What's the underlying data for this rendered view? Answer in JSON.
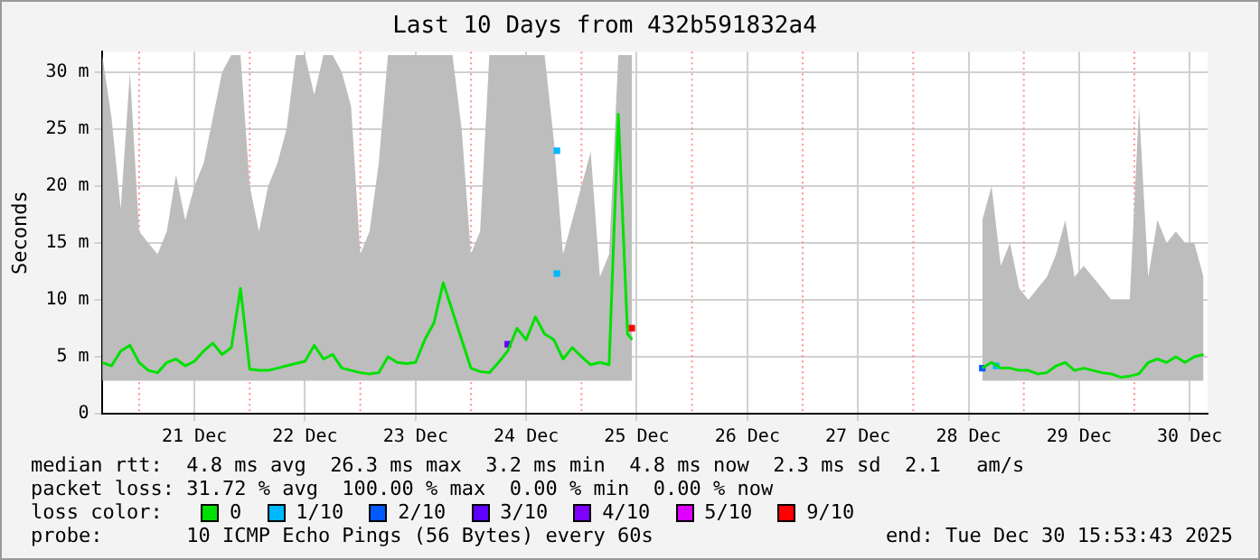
{
  "chart_data": {
    "type": "line",
    "title": "Last 10 Days from 432b591832a4",
    "ylabel": "Seconds",
    "legend_title": "loss color:",
    "x": [
      "2025-12-20T16:00",
      "2025-12-20T18:00",
      "2025-12-20T20:00",
      "2025-12-20T22:00",
      "2025-12-21T00:00",
      "2025-12-21T02:00",
      "2025-12-21T04:00",
      "2025-12-21T06:00",
      "2025-12-21T08:00",
      "2025-12-21T10:00",
      "2025-12-21T12:00",
      "2025-12-21T14:00",
      "2025-12-21T16:00",
      "2025-12-21T18:00",
      "2025-12-21T20:00",
      "2025-12-21T22:00",
      "2025-12-22T00:00",
      "2025-12-22T02:00",
      "2025-12-22T04:00",
      "2025-12-22T06:00",
      "2025-12-22T08:00",
      "2025-12-22T10:00",
      "2025-12-22T12:00",
      "2025-12-22T14:00",
      "2025-12-22T16:00",
      "2025-12-22T18:00",
      "2025-12-22T20:00",
      "2025-12-22T22:00",
      "2025-12-23T00:00",
      "2025-12-23T02:00",
      "2025-12-23T04:00",
      "2025-12-23T06:00",
      "2025-12-23T08:00",
      "2025-12-23T10:00",
      "2025-12-23T12:00",
      "2025-12-23T14:00",
      "2025-12-23T16:00",
      "2025-12-23T18:00",
      "2025-12-23T20:00",
      "2025-12-23T22:00",
      "2025-12-24T00:00",
      "2025-12-24T02:00",
      "2025-12-24T04:00",
      "2025-12-24T06:00",
      "2025-12-24T08:00",
      "2025-12-24T10:00",
      "2025-12-24T12:00",
      "2025-12-24T14:00",
      "2025-12-24T16:00",
      "2025-12-24T18:00",
      "2025-12-24T20:00",
      "2025-12-24T22:00",
      "2025-12-25T00:00",
      "2025-12-25T02:00",
      "2025-12-25T04:00",
      "2025-12-25T06:00",
      "2025-12-25T08:00",
      "2025-12-25T10:00",
      "2025-12-25T11:00",
      "2025-12-26T12:00",
      "2025-12-28T15:00",
      "2025-12-28T17:00",
      "2025-12-28T19:00",
      "2025-12-28T21:00",
      "2025-12-28T23:00",
      "2025-12-29T01:00",
      "2025-12-29T03:00",
      "2025-12-29T05:00",
      "2025-12-29T07:00",
      "2025-12-29T09:00",
      "2025-12-29T11:00",
      "2025-12-29T13:00",
      "2025-12-29T15:00",
      "2025-12-29T17:00",
      "2025-12-29T19:00",
      "2025-12-29T21:00",
      "2025-12-29T23:00",
      "2025-12-30T01:00",
      "2025-12-30T03:00",
      "2025-12-30T05:00",
      "2025-12-30T07:00",
      "2025-12-30T09:00",
      "2025-12-30T11:00",
      "2025-12-30T13:00",
      "2025-12-30T15:00"
    ],
    "series": [
      {
        "name": "0",
        "color": "#00e000",
        "values": [
          4.5,
          4.2,
          5.5,
          6,
          4.5,
          3.8,
          3.6,
          4.5,
          4.8,
          4.2,
          4.6,
          5.5,
          6.2,
          5.2,
          5.8,
          11,
          3.9,
          3.8,
          3.8,
          4,
          4.2,
          4.4,
          4.6,
          6,
          4.8,
          5.2,
          4,
          3.8,
          3.6,
          3.5,
          3.6,
          5,
          4.5,
          4.4,
          4.5,
          6.5,
          8,
          11.5,
          9,
          6.5,
          4,
          3.7,
          3.6,
          4.5,
          5.5,
          7.5,
          6.5,
          8.5,
          7,
          6.5,
          4.8,
          5.8,
          5,
          4.3,
          4.5,
          4.3,
          26.3,
          7,
          6.5,
          null,
          4,
          4.5,
          4,
          4,
          3.8,
          3.8,
          3.5,
          3.6,
          4.2,
          4.5,
          3.8,
          4,
          3.8,
          3.6,
          3.5,
          3.2,
          3.3,
          3.5,
          4.5,
          4.8,
          4.5,
          5,
          4.5,
          5,
          5.2
        ],
        "lower": [
          2.9,
          2.9,
          2.9,
          2.9,
          2.9,
          2.9,
          2.9,
          2.9,
          2.9,
          2.9,
          2.9,
          2.9,
          2.9,
          2.9,
          2.9,
          2.9,
          2.9,
          2.9,
          2.9,
          2.9,
          2.9,
          2.9,
          2.9,
          2.9,
          2.9,
          2.9,
          2.9,
          2.9,
          2.9,
          2.9,
          2.9,
          2.9,
          2.9,
          2.9,
          2.9,
          2.9,
          2.9,
          2.9,
          2.9,
          2.9,
          2.9,
          2.9,
          2.9,
          2.9,
          2.9,
          2.9,
          2.9,
          2.9,
          2.9,
          2.9,
          2.9,
          2.9,
          2.9,
          2.9,
          2.9,
          2.9,
          2.9,
          2.9,
          2.9,
          null,
          2.9,
          2.9,
          2.9,
          2.9,
          2.9,
          2.9,
          2.9,
          2.9,
          2.9,
          2.9,
          2.9,
          2.9,
          2.9,
          2.9,
          2.9,
          2.9,
          2.9,
          2.9,
          2.9,
          2.9,
          2.9,
          2.9,
          2.9,
          2.9,
          2.9
        ],
        "upper": [
          31.5,
          26,
          18,
          30,
          16,
          15,
          14,
          16,
          21,
          17,
          20,
          22,
          26,
          30,
          31.5,
          31.5,
          20,
          16,
          20,
          22,
          25,
          31.5,
          31.5,
          28,
          31.5,
          31.5,
          30,
          27,
          14,
          16,
          22,
          31.5,
          31.5,
          31.5,
          31.5,
          31.5,
          31.5,
          31.5,
          31.5,
          25,
          14,
          16,
          31.5,
          31.5,
          31.5,
          31.5,
          31.5,
          31.5,
          31.5,
          24,
          14,
          17,
          20,
          23,
          12,
          14,
          31.5,
          31.5,
          31.5,
          null,
          17,
          20,
          13,
          15,
          11,
          10,
          11,
          12,
          14,
          17,
          12,
          13,
          12,
          11,
          10,
          10,
          10,
          27,
          12,
          17,
          15,
          16,
          15,
          15,
          12
        ]
      },
      {
        "name": "1/10",
        "color": "#00b8ff",
        "type": "scatter",
        "marker": "square",
        "x": [
          "2025-12-24T18:40",
          "2025-12-24T18:40",
          "2025-12-28T18:00"
        ],
        "values": [
          23.1,
          12.3,
          4.2
        ]
      },
      {
        "name": "2/10",
        "color": "#0059ff",
        "type": "scatter",
        "marker": "square",
        "x": [
          "2025-12-28T15:00"
        ],
        "values": [
          4.0
        ]
      },
      {
        "name": "3/10",
        "color": "#5e00ff",
        "type": "scatter",
        "marker": "square",
        "x": [
          "2025-12-24T08:00"
        ],
        "values": [
          6.1
        ]
      },
      {
        "name": "4/10",
        "color": "#7e00ff",
        "type": "scatter",
        "marker": "square",
        "values": [
          null,
          null,
          null,
          null,
          null,
          null,
          null,
          null,
          null,
          null,
          null,
          null,
          null,
          null,
          null,
          null,
          null,
          null,
          null,
          null,
          null,
          null,
          null,
          null,
          null,
          null,
          null,
          null,
          null,
          null,
          null,
          null,
          null,
          null,
          null,
          null,
          null,
          null,
          null,
          null,
          null,
          null,
          null,
          null,
          null,
          null,
          null,
          null,
          null,
          null,
          null,
          null,
          null,
          null,
          null,
          null,
          null,
          null,
          null,
          null,
          null,
          null,
          null,
          null,
          null,
          null,
          null,
          null,
          null,
          null,
          null,
          null,
          null,
          null,
          null,
          null,
          null,
          null,
          null,
          null,
          null,
          null,
          null,
          null,
          null
        ]
      },
      {
        "name": "5/10",
        "color": "#dd00ff",
        "type": "scatter",
        "marker": "square",
        "values": [
          null,
          null,
          null,
          null,
          null,
          null,
          null,
          null,
          null,
          null,
          null,
          null,
          null,
          null,
          null,
          null,
          null,
          null,
          null,
          null,
          null,
          null,
          null,
          null,
          null,
          null,
          null,
          null,
          null,
          null,
          null,
          null,
          null,
          null,
          null,
          null,
          null,
          null,
          null,
          null,
          null,
          null,
          null,
          null,
          null,
          null,
          null,
          null,
          null,
          null,
          null,
          null,
          null,
          null,
          null,
          null,
          null,
          null,
          null,
          null,
          null,
          null,
          null,
          null,
          null,
          null,
          null,
          null,
          null,
          null,
          null,
          null,
          null,
          null,
          null,
          null,
          null,
          null,
          null,
          null,
          null,
          null,
          null,
          null,
          null
        ]
      },
      {
        "name": "9/10",
        "color": "#ff0000",
        "type": "scatter",
        "marker": "square",
        "x": [
          "2025-12-25T10:55"
        ],
        "values": [
          7.5
        ]
      }
    ],
    "xlim": [
      "2025-12-20T15:53",
      "2025-12-30T15:53"
    ],
    "xticks": [
      {
        "value": "2025-12-21T12:00",
        "label": "21 Dec"
      },
      {
        "value": "2025-12-22T12:00",
        "label": "22 Dec"
      },
      {
        "value": "2025-12-23T12:00",
        "label": "23 Dec"
      },
      {
        "value": "2025-12-24T12:00",
        "label": "24 Dec"
      },
      {
        "value": "2025-12-25T12:00",
        "label": "25 Dec"
      },
      {
        "value": "2025-12-26T12:00",
        "label": "26 Dec"
      },
      {
        "value": "2025-12-27T12:00",
        "label": "27 Dec"
      },
      {
        "value": "2025-12-28T12:00",
        "label": "28 Dec"
      },
      {
        "value": "2025-12-29T12:00",
        "label": "29 Dec"
      },
      {
        "value": "2025-12-30T12:00",
        "label": "30 Dec"
      }
    ],
    "ylim": [
      0,
      31.8
    ],
    "yticks": [
      0,
      {
        "value": 5,
        "label": "5 m"
      },
      {
        "value": 10,
        "label": "10 m"
      },
      {
        "value": 15,
        "label": "15 m"
      },
      {
        "value": 20,
        "label": "20 m"
      },
      {
        "value": 25,
        "label": "25 m"
      },
      {
        "value": 30,
        "label": "30 m"
      }
    ],
    "ref_lines": [
      {
        "axis": "x",
        "value": "2025-12-21T00:00",
        "color": "#ff9090",
        "line_style": "dotted"
      },
      {
        "axis": "x",
        "value": "2025-12-22T00:00",
        "color": "#ff9090",
        "line_style": "dotted"
      },
      {
        "axis": "x",
        "value": "2025-12-23T00:00",
        "color": "#ff9090",
        "line_style": "dotted"
      },
      {
        "axis": "x",
        "value": "2025-12-24T00:00",
        "color": "#ff9090",
        "line_style": "dotted"
      },
      {
        "axis": "x",
        "value": "2025-12-25T00:00",
        "color": "#ff9090",
        "line_style": "dotted"
      },
      {
        "axis": "x",
        "value": "2025-12-26T00:00",
        "color": "#ff9090",
        "line_style": "dotted"
      },
      {
        "axis": "x",
        "value": "2025-12-27T00:00",
        "color": "#ff9090",
        "line_style": "dotted"
      },
      {
        "axis": "x",
        "value": "2025-12-28T00:00",
        "color": "#ff9090",
        "line_style": "dotted"
      },
      {
        "axis": "x",
        "value": "2025-12-29T00:00",
        "color": "#ff9090",
        "line_style": "dotted"
      },
      {
        "axis": "x",
        "value": "2025-12-30T00:00",
        "color": "#ff9090",
        "line_style": "dotted"
      }
    ],
    "grid": true,
    "legend": "bottom",
    "marker": "none",
    "line_style": "solid",
    "annotations": [
      "median rtt:  4.8 ms avg  26.3 ms max  3.2 ms min  4.8 ms now  2.3 ms sd  2.1   am/s",
      "packet loss: 31.72 % avg  100.00 % max  0.00 % min  0.00 % now",
      "probe:       10 ICMP Echo Pings (56 Bytes) every 60s",
      "end: Tue Dec 30 15:53:43 2025"
    ]
  }
}
